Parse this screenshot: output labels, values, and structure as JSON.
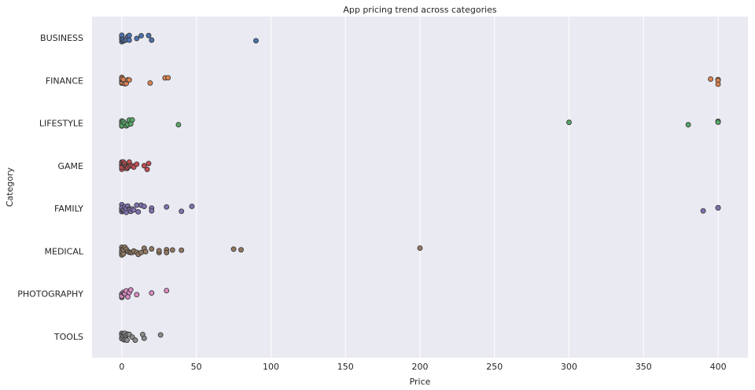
{
  "chart_data": {
    "type": "scatter",
    "subtype": "strip",
    "title": "App pricing trend across categories",
    "xlabel": "Price",
    "ylabel": "Category",
    "xlim": [
      -20,
      420
    ],
    "xticks": [
      0,
      50,
      100,
      150,
      200,
      250,
      300,
      350,
      400
    ],
    "grid": true,
    "legend": "none",
    "background": "#eaeaf2",
    "categories": [
      "BUSINESS",
      "FINANCE",
      "LIFESTYLE",
      "GAME",
      "FAMILY",
      "MEDICAL",
      "PHOTOGRAPHY",
      "TOOLS"
    ],
    "series": [
      {
        "category": "BUSINESS",
        "color": "#4c72b0",
        "values": [
          0,
          0,
          0,
          0,
          0,
          0,
          0,
          0.99,
          0.99,
          1.99,
          2.99,
          3.99,
          4.99,
          4.99,
          9.99,
          12.99,
          17.99,
          19.99,
          89.99
        ]
      },
      {
        "category": "FINANCE",
        "color": "#dd8452",
        "values": [
          0,
          0,
          0,
          0,
          0,
          0,
          0.99,
          1.99,
          2.99,
          3.99,
          4.99,
          18.99,
          28.99,
          30.99,
          394.99,
          399.99,
          399.99,
          399.99
        ]
      },
      {
        "category": "LIFESTYLE",
        "color": "#55a868",
        "values": [
          0,
          0,
          0,
          0,
          0,
          0,
          0.99,
          1.99,
          2.99,
          3.99,
          4.99,
          5.99,
          6.99,
          37.99,
          299.99,
          379.99,
          399.99,
          399.99
        ]
      },
      {
        "category": "GAME",
        "color": "#c44e52",
        "values": [
          0,
          0,
          0,
          0,
          0,
          0,
          0,
          0,
          0.99,
          0.99,
          1.49,
          1.99,
          1.99,
          2.49,
          2.99,
          2.99,
          3.49,
          3.99,
          3.99,
          4.99,
          4.99,
          5.99,
          6.99,
          7.99,
          9.99,
          14.99,
          16.99,
          17.99
        ]
      },
      {
        "category": "FAMILY",
        "color": "#8172b3",
        "values": [
          0,
          0,
          0,
          0,
          0,
          0,
          0,
          0.99,
          0.99,
          1.99,
          1.99,
          2.99,
          2.99,
          3.99,
          4.99,
          4.99,
          5.99,
          6.99,
          7.99,
          9.99,
          10.99,
          12.99,
          14.99,
          19.99,
          19.99,
          29.99,
          39.99,
          46.99,
          389.99,
          399.99,
          399.99
        ]
      },
      {
        "category": "MEDICAL",
        "color": "#937860",
        "values": [
          0,
          0,
          0,
          0,
          0,
          0,
          0,
          0.99,
          0.99,
          1.99,
          2.99,
          3.99,
          4.99,
          5.99,
          6.99,
          7.99,
          9.99,
          10.99,
          12.99,
          14.99,
          15.99,
          19.99,
          24.99,
          24.99,
          29.99,
          29.99,
          33.99,
          39.99,
          74.99,
          79.99,
          199.99
        ]
      },
      {
        "category": "PHOTOGRAPHY",
        "color": "#da8bc3",
        "values": [
          0,
          0,
          0,
          0,
          0,
          0,
          0.99,
          1.49,
          1.99,
          2.99,
          3.99,
          4.99,
          5.99,
          9.99,
          19.99,
          29.99
        ]
      },
      {
        "category": "TOOLS",
        "color": "#8c8c8c",
        "values": [
          0,
          0,
          0,
          0,
          0,
          0,
          0,
          0.99,
          0.99,
          1.49,
          1.99,
          1.99,
          2.49,
          2.99,
          3.49,
          3.99,
          4.99,
          6.99,
          8.99,
          13.99,
          14.99,
          25.99
        ]
      }
    ]
  }
}
